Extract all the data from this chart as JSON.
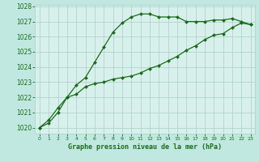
{
  "title": "Graphe pression niveau de la mer (hPa)",
  "background_color": "#c0e8e0",
  "plot_bg_color": "#d8f0ec",
  "grid_color": "#b0d4cc",
  "line_color": "#1a6b1a",
  "marker_color": "#1a6b1a",
  "xlim": [
    -0.5,
    23.5
  ],
  "ylim": [
    1019.6,
    1028.1
  ],
  "yticks": [
    1020,
    1021,
    1022,
    1023,
    1024,
    1025,
    1026,
    1027,
    1028
  ],
  "xticks": [
    0,
    1,
    2,
    3,
    4,
    5,
    6,
    7,
    8,
    9,
    10,
    11,
    12,
    13,
    14,
    15,
    16,
    17,
    18,
    19,
    20,
    21,
    22,
    23
  ],
  "series1_x": [
    0,
    1,
    2,
    3,
    4,
    5,
    6,
    7,
    8,
    9,
    10,
    11,
    12,
    13,
    14,
    15,
    16,
    17,
    18,
    19,
    20,
    21,
    22,
    23
  ],
  "series1_y": [
    1020.0,
    1020.5,
    1021.3,
    1022.0,
    1022.8,
    1023.3,
    1024.3,
    1025.3,
    1026.3,
    1026.9,
    1027.3,
    1027.5,
    1027.5,
    1027.3,
    1027.3,
    1027.3,
    1027.0,
    1027.0,
    1027.0,
    1027.1,
    1027.1,
    1027.2,
    1027.0,
    1026.8
  ],
  "series2_x": [
    0,
    1,
    2,
    3,
    4,
    5,
    6,
    7,
    8,
    9,
    10,
    11,
    12,
    13,
    14,
    15,
    16,
    17,
    18,
    19,
    20,
    21,
    22,
    23
  ],
  "series2_y": [
    1020.0,
    1020.3,
    1021.0,
    1022.0,
    1022.2,
    1022.7,
    1022.9,
    1023.0,
    1023.2,
    1023.3,
    1023.4,
    1023.6,
    1023.9,
    1024.1,
    1024.4,
    1024.7,
    1025.1,
    1025.4,
    1025.8,
    1026.1,
    1026.2,
    1026.6,
    1026.9,
    1026.8
  ]
}
